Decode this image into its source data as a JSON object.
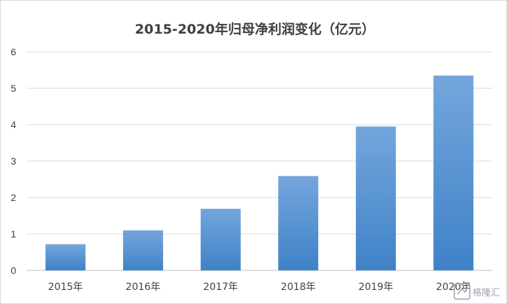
{
  "chart_data": {
    "type": "bar",
    "title": "2015-2020年归母净利润变化（亿元）",
    "categories": [
      "2015年",
      "2016年",
      "2017年",
      "2018年",
      "2019年",
      "2020年"
    ],
    "values": [
      0.72,
      1.1,
      1.69,
      2.59,
      3.95,
      5.35
    ],
    "ylim": [
      0,
      6
    ],
    "yticks": [
      "0",
      "1",
      "2",
      "3",
      "4",
      "5",
      "6"
    ],
    "grid": true,
    "legend": "none",
    "bar_color_top": "#74a6dc",
    "bar_color_bottom": "#3f82c8"
  },
  "watermark": {
    "text": "格隆汇",
    "icon": "glh-logo-icon"
  }
}
